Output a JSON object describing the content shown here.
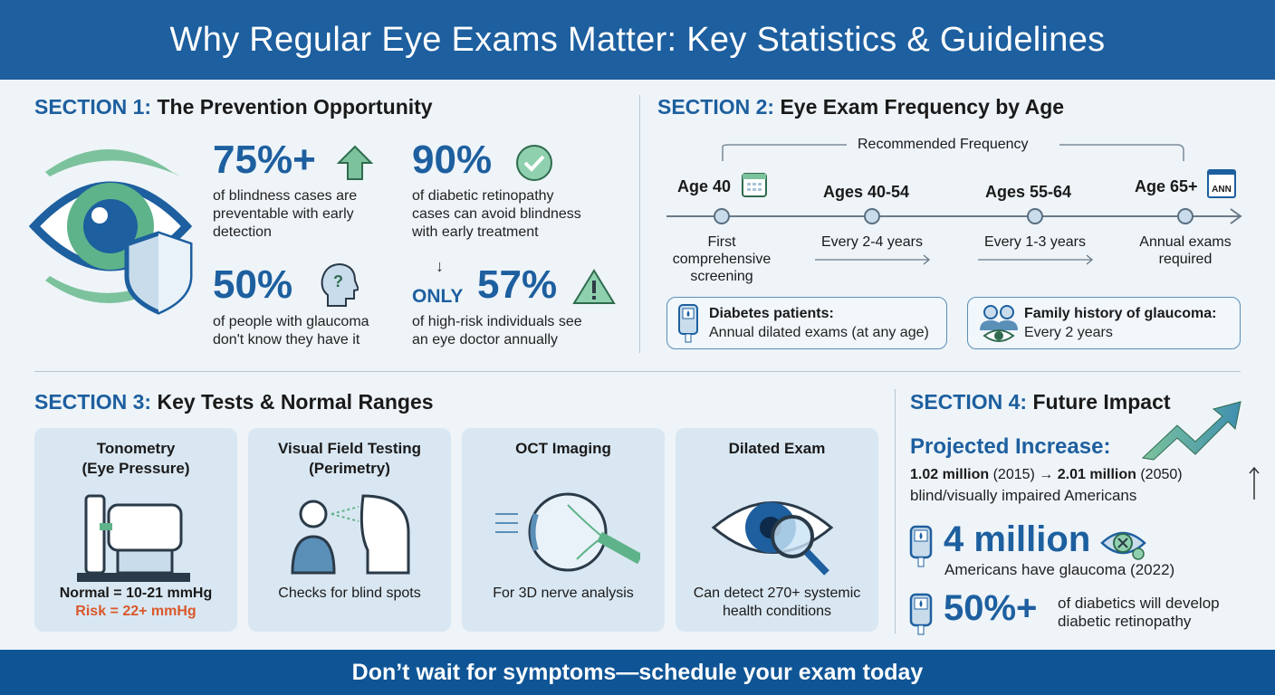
{
  "title": "Why Regular Eye Exams Matter: Key Statistics & Guidelines",
  "footer": "Don’t wait for symptoms—schedule your exam today",
  "section1": {
    "label": "SECTION 1:",
    "title": "The Prevention Opportunity",
    "stats": [
      {
        "value": "75%+",
        "text": [
          "of blindness cases are",
          "preventable with early",
          "detection"
        ],
        "icon": "arrow-up-icon"
      },
      {
        "value": "90%",
        "text": [
          "of diabetic retinopathy",
          "cases can avoid blindness",
          "with early treatment"
        ],
        "icon": "check-circle-icon"
      },
      {
        "value": "50%",
        "text": [
          "of people with glaucoma",
          "don't know they have it"
        ],
        "icon": "head-question-icon"
      },
      {
        "prefix": "ONLY",
        "value": "57%",
        "text": [
          "of high-risk individuals see",
          "an eye doctor annually"
        ],
        "icon": "warning-icon"
      }
    ]
  },
  "section2": {
    "label": "SECTION 2:",
    "title": "Eye Exam Frequency by Age",
    "bracket": "Recommended Frequency",
    "stages": [
      {
        "age": "Age 40",
        "desc": [
          "First",
          "comprehensive",
          "screening"
        ]
      },
      {
        "age": "Ages 40-54",
        "desc": [
          "Every 2-4 years"
        ]
      },
      {
        "age": "Ages 55-64",
        "desc": [
          "Every 1-3 years"
        ]
      },
      {
        "age": "Age 65+",
        "desc": [
          "Annual exams",
          "required"
        ],
        "badge": "ANN"
      }
    ],
    "notes": [
      {
        "title": "Diabetes patients:",
        "text": "Annual dilated exams (at any age)"
      },
      {
        "title": "Family history of glaucoma:",
        "text": "Every 2 years"
      }
    ]
  },
  "section3": {
    "label": "SECTION 3:",
    "title": "Key Tests & Normal Ranges",
    "tests": [
      {
        "name": [
          "Tonometry",
          "(Eye Pressure)"
        ],
        "desc": "Normal = 10-21 mmHg",
        "risk": "Risk = 22+ mmHg"
      },
      {
        "name": [
          "Visual Field Testing",
          "(Perimetry)"
        ],
        "desc": "Checks for blind spots"
      },
      {
        "name": [
          "OCT Imaging"
        ],
        "desc": "For 3D nerve analysis"
      },
      {
        "name": [
          "Dilated Exam"
        ],
        "desc": "Can detect 270+ systemic",
        "desc2": "health conditions"
      }
    ]
  },
  "section4": {
    "label": "SECTION 4:",
    "title": "Future Impact",
    "projected": "Projected Increase:",
    "from_value": "1.02 million",
    "from_year": "(2015)",
    "arrow": "→",
    "to_value": "2.01 million",
    "to_year": "(2050)",
    "proj_text": "blind/visually impaired Americans",
    "glaucoma_value": "4 million",
    "glaucoma_text": "Americans have glaucoma (2022)",
    "diab_value": "50%+",
    "diab_text": [
      "of diabetics will develop",
      "diabetic retinopathy"
    ]
  },
  "colors": {
    "primary": "#1d5f9f",
    "accent_green": "#5fb38a",
    "risk": "#d9582b",
    "footer": "#0f5596"
  }
}
